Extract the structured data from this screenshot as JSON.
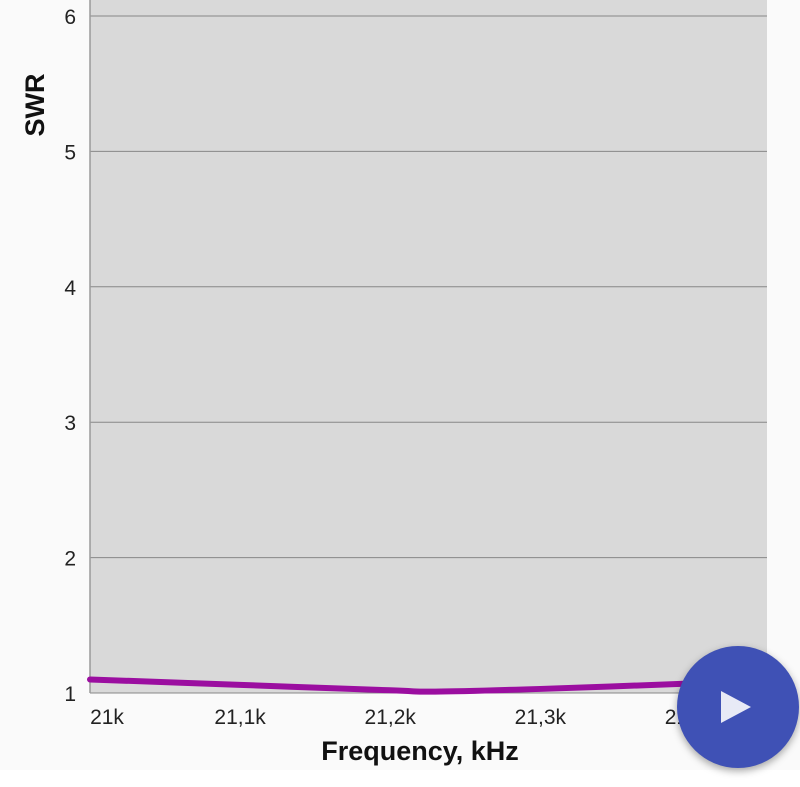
{
  "chart_data": {
    "type": "line",
    "xlabel": "Frequency, kHz",
    "ylabel": "SWR",
    "xlim": [
      21000,
      21451
    ],
    "ylim": [
      1,
      6.12
    ],
    "x_ticks": [
      21000,
      21100,
      21200,
      21300,
      21400
    ],
    "x_tick_labels": [
      "21k",
      "21,1k",
      "21,2k",
      "21,3k",
      "21,4k"
    ],
    "y_ticks": [
      1,
      2,
      3,
      4,
      5,
      6
    ],
    "y_tick_labels": [
      "1",
      "2",
      "3",
      "4",
      "5",
      "6"
    ],
    "grid": true,
    "series": [
      {
        "x": [
          21000,
          21100,
          21200,
          21230,
          21300,
          21400,
          21451
        ],
        "y": [
          1.1,
          1.06,
          1.02,
          1.01,
          1.03,
          1.07,
          1.09
        ]
      }
    ],
    "colors": {
      "line": "#9b0ea0",
      "plot_background": "#d9d9d9",
      "grid": "#888888"
    }
  },
  "fab": {
    "icon": "play-icon",
    "color": "#3f51b5"
  }
}
